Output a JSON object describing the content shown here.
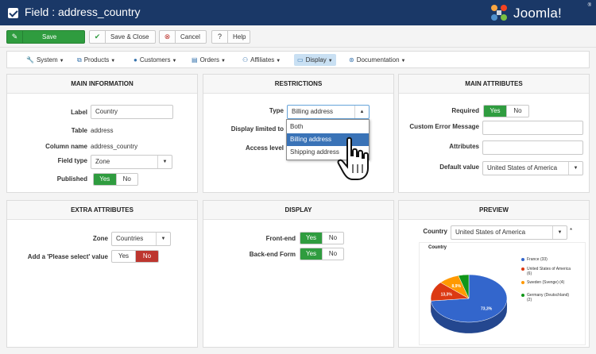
{
  "header": {
    "title": "Field : address_country",
    "brand": "Joomla!",
    "brand_sup": "®"
  },
  "toolbar": {
    "save": "Save",
    "save_close": "Save & Close",
    "cancel": "Cancel",
    "help": "Help"
  },
  "nav": [
    {
      "label": "System",
      "icon": "wrench-icon"
    },
    {
      "label": "Products",
      "icon": "cubes-icon"
    },
    {
      "label": "Customers",
      "icon": "user-icon"
    },
    {
      "label": "Orders",
      "icon": "cart-icon"
    },
    {
      "label": "Affiliates",
      "icon": "users-icon"
    },
    {
      "label": "Display",
      "icon": "monitor-icon",
      "active": true
    },
    {
      "label": "Documentation",
      "icon": "lifebuoy-icon"
    }
  ],
  "main_information": {
    "heading": "MAIN INFORMATION",
    "label_label": "Label",
    "label_value": "Country",
    "table_label": "Table",
    "table_value": "address",
    "column_label": "Column name",
    "column_value": "address_country",
    "fieldtype_label": "Field type",
    "fieldtype_value": "Zone",
    "published_label": "Published",
    "yes": "Yes",
    "no": "No"
  },
  "restrictions": {
    "heading": "RESTRICTIONS",
    "type_label": "Type",
    "type_value": "Billing address",
    "display_limited_label": "Display limited to",
    "access_level_label": "Access level",
    "options": [
      "Both",
      "Billing address",
      "Shipping address"
    ]
  },
  "main_attributes": {
    "heading": "MAIN ATTRIBUTES",
    "required_label": "Required",
    "custom_error_label": "Custom Error Message",
    "attributes_label": "Attributes",
    "default_value_label": "Default value",
    "default_value": "United States of America",
    "yes": "Yes",
    "no": "No"
  },
  "extra_attributes": {
    "heading": "EXTRA ATTRIBUTES",
    "zone_label": "Zone",
    "zone_value": "Countries",
    "please_select_label": "Add a 'Please select' value",
    "yes": "Yes",
    "no": "No"
  },
  "display": {
    "heading": "DISPLAY",
    "frontend_label": "Front-end",
    "backend_label": "Back-end Form",
    "yes": "Yes",
    "no": "No"
  },
  "preview": {
    "heading": "PREVIEW",
    "country_label": "Country",
    "country_value": "United States of America"
  },
  "chart_data": {
    "type": "pie",
    "title": "Country",
    "categories": [
      "France (33)",
      "United States of America (6)",
      "Sweden (Svenge) (4)",
      "Germany (Deutschland) (2)"
    ],
    "values": [
      33,
      6,
      4,
      2
    ],
    "data_labels": [
      "73,3%",
      "13,3%",
      "8,9%",
      ""
    ],
    "colors": [
      "#3366cc",
      "#dc3912",
      "#ff9900",
      "#109618"
    ],
    "legend": "right"
  }
}
